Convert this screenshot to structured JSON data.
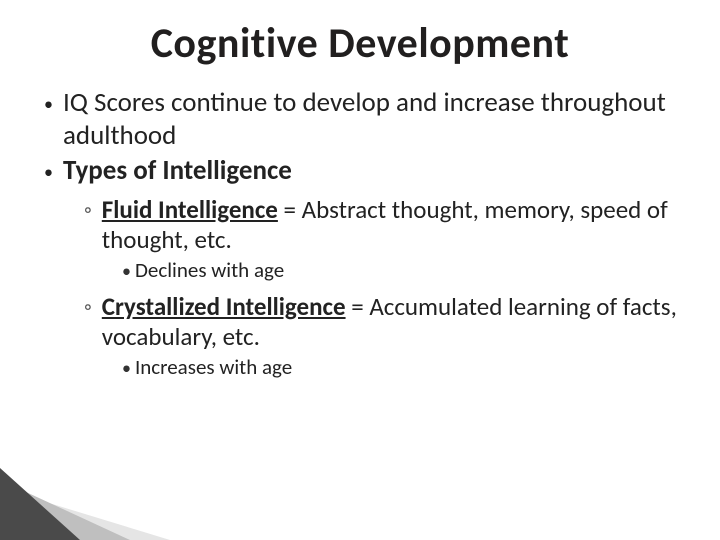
{
  "title": "Cognitive Development",
  "bullets": {
    "lvl1_glyph": "",
    "lvl2_glyph": "◦",
    "lvl3_glyph": ""
  },
  "items": [
    {
      "level": 1,
      "bold": false,
      "runs": [
        {
          "t": "IQ Scores continue to develop and increase throughout adulthood"
        }
      ]
    },
    {
      "level": 1,
      "bold": true,
      "runs": [
        {
          "t": "Types of Intelligence"
        }
      ]
    },
    {
      "level": 2,
      "runs": [
        {
          "t": "Fluid Intelligence",
          "bold": true,
          "under": true
        },
        {
          "t": " = Abstract thought, memory, speed of thought, etc."
        }
      ]
    },
    {
      "level": 3,
      "runs": [
        {
          "t": "Declines with age"
        }
      ]
    },
    {
      "level": 2,
      "runs": [
        {
          "t": "Crystallized Intelligence",
          "bold": true,
          "under": true
        },
        {
          "t": " = Accumulated learning of facts, vocabulary, etc."
        }
      ]
    },
    {
      "level": 3,
      "runs": [
        {
          "t": "Increases with age"
        }
      ]
    }
  ],
  "colors": {
    "background": "#ffffff",
    "text": "#222222",
    "title": "#211f1f",
    "corner_a": "#4a4a4a",
    "corner_b": "#bfbfbf",
    "corner_c": "#e5e5e5"
  }
}
